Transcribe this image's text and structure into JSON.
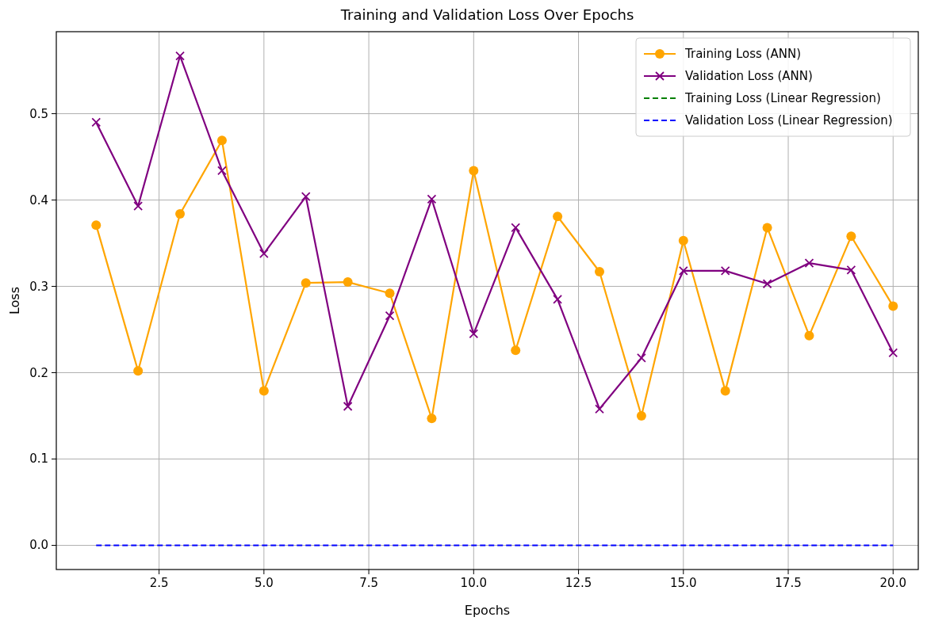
{
  "chart_data": {
    "type": "line",
    "title": "Training and Validation Loss Over Epochs",
    "xlabel": "Epochs",
    "ylabel": "Loss",
    "x": [
      1,
      2,
      3,
      4,
      5,
      6,
      7,
      8,
      9,
      10,
      11,
      12,
      13,
      14,
      15,
      16,
      17,
      18,
      19,
      20
    ],
    "series": [
      {
        "name": "Training Loss (ANN)",
        "color": "#ffa500",
        "marker": "circle",
        "line_style": "solid",
        "values": [
          0.371,
          0.202,
          0.384,
          0.469,
          0.179,
          0.304,
          0.305,
          0.292,
          0.147,
          0.434,
          0.226,
          0.381,
          0.317,
          0.15,
          0.353,
          0.179,
          0.368,
          0.243,
          0.358,
          0.277
        ]
      },
      {
        "name": "Validation Loss (ANN)",
        "color": "#800080",
        "marker": "cross",
        "line_style": "solid",
        "values": [
          0.49,
          0.393,
          0.567,
          0.434,
          0.338,
          0.404,
          0.161,
          0.266,
          0.401,
          0.245,
          0.368,
          0.285,
          0.158,
          0.217,
          0.318,
          0.318,
          0.303,
          0.327,
          0.319,
          0.223
        ]
      },
      {
        "name": "Training Loss (Linear Regression)",
        "color": "#008000",
        "marker": "none",
        "line_style": "dashed",
        "values": [
          null,
          null,
          null,
          null,
          null,
          null,
          null,
          null,
          null,
          null,
          null,
          null,
          null,
          null,
          null,
          null,
          null,
          null,
          null,
          null
        ]
      },
      {
        "name": "Validation Loss (Linear Regression)",
        "color": "#0000ff",
        "marker": "none",
        "line_style": "dashed",
        "values": [
          0,
          0,
          0,
          0,
          0,
          0,
          0,
          0,
          0,
          0,
          0,
          0,
          0,
          0,
          0,
          0,
          0,
          0,
          0,
          0
        ]
      }
    ],
    "xlim": [
      0.05,
      20.6
    ],
    "ylim": [
      -0.028,
      0.595
    ],
    "xticks": [
      {
        "value": 2.5,
        "label": "2.5"
      },
      {
        "value": 5,
        "label": "5.0"
      },
      {
        "value": 7.5,
        "label": "7.5"
      },
      {
        "value": 10,
        "label": "10.0"
      },
      {
        "value": 12.5,
        "label": "12.5"
      },
      {
        "value": 15,
        "label": "15.0"
      },
      {
        "value": 17.5,
        "label": "17.5"
      },
      {
        "value": 20,
        "label": "20.0"
      }
    ],
    "yticks": [
      {
        "value": 0,
        "label": "0.0"
      },
      0.1,
      0.2,
      0.3,
      0.4,
      0.5
    ],
    "grid": true,
    "legend": "top right"
  }
}
